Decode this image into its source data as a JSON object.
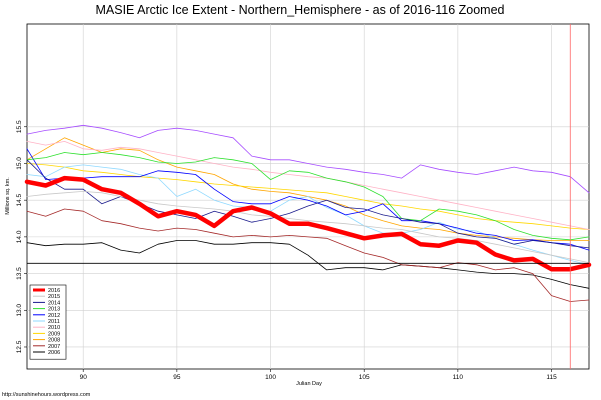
{
  "chart_data": {
    "type": "line",
    "title": "MASIE Arctic Ice Extent - Northern_Hemisphere - as of 2016-116 Zoomed",
    "xlabel": "Julian Day",
    "ylabel": "Millions sq. km.",
    "xlim": [
      87,
      117
    ],
    "ylim": [
      12.2,
      16.9
    ],
    "xticks": [
      90,
      95,
      100,
      105,
      110,
      115
    ],
    "yticks": [
      12.5,
      13.0,
      13.5,
      14.0,
      14.5,
      15.0,
      15.5
    ],
    "hline": 13.64,
    "vline": 116,
    "x": [
      87,
      88,
      89,
      90,
      91,
      92,
      93,
      94,
      95,
      96,
      97,
      98,
      99,
      100,
      101,
      102,
      103,
      104,
      105,
      106,
      107,
      108,
      109,
      110,
      111,
      112,
      113,
      114,
      115,
      116,
      117
    ],
    "legend_position": "bottom-left",
    "note": "http://sunshinehours.wordpress.com",
    "series": [
      {
        "name": "2016",
        "color": "#ff0000",
        "width": 4.5,
        "values": [
          14.75,
          14.7,
          14.8,
          14.78,
          14.65,
          14.6,
          14.45,
          14.28,
          14.35,
          14.3,
          14.15,
          14.35,
          14.4,
          14.32,
          14.18,
          14.18,
          14.12,
          14.05,
          13.98,
          14.02,
          14.04,
          13.9,
          13.88,
          13.95,
          13.92,
          13.76,
          13.68,
          13.7,
          13.56,
          13.56,
          13.62
        ]
      },
      {
        "name": "2015",
        "color": "#c9c9c9",
        "width": 0.8,
        "values": [
          14.55,
          14.58,
          14.6,
          14.62,
          14.6,
          14.55,
          14.5,
          14.45,
          14.42,
          14.4,
          14.38,
          14.35,
          14.3,
          14.28,
          14.25,
          14.22,
          14.2,
          14.18,
          14.15,
          14.12,
          14.1,
          14.05,
          14.0,
          13.98,
          13.95,
          13.9,
          13.85,
          13.8,
          13.75,
          13.7,
          13.65
        ]
      },
      {
        "name": "2014",
        "color": "#1a1a8c",
        "width": 0.8,
        "values": [
          15.05,
          14.8,
          14.65,
          14.65,
          14.45,
          14.55,
          14.45,
          14.35,
          14.3,
          14.25,
          14.35,
          14.28,
          14.2,
          14.25,
          14.32,
          14.42,
          14.5,
          14.4,
          14.38,
          14.3,
          14.25,
          14.2,
          14.18,
          14.05,
          14.0,
          13.98,
          13.9,
          13.95,
          13.92,
          13.88,
          13.85
        ]
      },
      {
        "name": "2013",
        "color": "#2ee02e",
        "width": 0.8,
        "values": [
          15.05,
          15.08,
          15.15,
          15.12,
          15.15,
          15.12,
          15.08,
          15.02,
          15.0,
          15.02,
          15.08,
          15.05,
          15.0,
          14.78,
          14.9,
          14.88,
          14.8,
          14.75,
          14.68,
          14.55,
          14.25,
          14.22,
          14.38,
          14.35,
          14.3,
          14.22,
          14.1,
          14.02,
          13.98,
          13.96,
          14.0
        ]
      },
      {
        "name": "2012",
        "color": "#0000ff",
        "width": 0.8,
        "values": [
          15.2,
          14.78,
          14.8,
          14.8,
          14.82,
          14.82,
          14.82,
          14.9,
          14.88,
          14.85,
          14.65,
          14.48,
          14.45,
          14.45,
          14.55,
          14.5,
          14.42,
          14.3,
          14.35,
          14.45,
          14.22,
          14.22,
          14.18,
          14.12,
          14.05,
          14.02,
          13.95,
          13.96,
          13.92,
          13.9,
          13.82
        ]
      },
      {
        "name": "2011",
        "color": "#8fd9ff",
        "width": 0.8,
        "values": [
          14.85,
          14.82,
          14.95,
          14.98,
          14.95,
          14.92,
          14.85,
          14.8,
          14.55,
          14.65,
          14.5,
          14.42,
          14.4,
          14.35,
          14.5,
          14.55,
          14.4,
          14.3,
          14.15,
          14.05,
          14.05,
          14.1,
          14.2,
          14.1,
          14.08,
          13.98,
          13.9,
          13.82,
          13.75,
          13.68,
          13.62
        ]
      },
      {
        "name": "2010",
        "color": "#ffb3c6",
        "width": 0.8,
        "values": [
          15.3,
          15.25,
          15.3,
          15.2,
          15.18,
          15.22,
          15.2,
          15.15,
          15.1,
          15.05,
          15.0,
          14.95,
          14.92,
          14.88,
          14.85,
          14.82,
          14.8,
          14.75,
          14.7,
          14.65,
          14.6,
          14.55,
          14.5,
          14.45,
          14.4,
          14.35,
          14.3,
          14.25,
          14.2,
          14.15,
          14.1
        ]
      },
      {
        "name": "2009",
        "color": "#ffd700",
        "width": 0.8,
        "values": [
          15.0,
          14.98,
          14.95,
          14.9,
          14.88,
          14.85,
          14.82,
          14.8,
          14.78,
          14.75,
          14.72,
          14.7,
          14.68,
          14.66,
          14.64,
          14.62,
          14.6,
          14.55,
          14.5,
          14.45,
          14.42,
          14.38,
          14.35,
          14.3,
          14.25,
          14.22,
          14.2,
          14.18,
          14.15,
          14.12,
          14.1
        ]
      },
      {
        "name": "2008",
        "color": "#ffa500",
        "width": 0.8,
        "values": [
          15.05,
          15.2,
          15.35,
          15.25,
          15.15,
          15.2,
          15.18,
          15.05,
          14.95,
          14.9,
          14.85,
          14.72,
          14.65,
          14.62,
          14.6,
          14.55,
          14.5,
          14.42,
          14.3,
          14.22,
          14.15,
          14.12,
          14.1,
          14.05,
          14.02,
          14.0,
          13.98,
          13.96,
          13.95,
          13.95,
          13.95
        ]
      },
      {
        "name": "2007",
        "color": "#a52a2a",
        "width": 0.8,
        "values": [
          14.35,
          14.28,
          14.38,
          14.35,
          14.22,
          14.18,
          14.12,
          14.08,
          14.12,
          14.1,
          14.05,
          14.0,
          14.02,
          14.0,
          14.02,
          14.0,
          13.98,
          13.88,
          13.78,
          13.72,
          13.62,
          13.6,
          13.58,
          13.65,
          13.62,
          13.55,
          13.58,
          13.5,
          13.2,
          13.12,
          13.14
        ]
      },
      {
        "name": "2006",
        "color": "#000000",
        "width": 0.8,
        "values": [
          13.92,
          13.88,
          13.9,
          13.9,
          13.92,
          13.82,
          13.78,
          13.9,
          13.95,
          13.95,
          13.9,
          13.9,
          13.92,
          13.92,
          13.9,
          13.75,
          13.55,
          13.58,
          13.58,
          13.55,
          13.62,
          13.6,
          13.58,
          13.55,
          13.52,
          13.5,
          13.5,
          13.48,
          13.42,
          13.35,
          13.3
        ]
      },
      {
        "name": "",
        "color": "#a64dff",
        "width": 0.8,
        "values": [
          15.4,
          15.45,
          15.48,
          15.52,
          15.48,
          15.42,
          15.35,
          15.45,
          15.48,
          15.45,
          15.4,
          15.35,
          15.1,
          15.05,
          15.05,
          15.0,
          14.95,
          14.92,
          14.88,
          14.85,
          14.8,
          14.98,
          14.92,
          14.88,
          14.85,
          14.9,
          14.95,
          14.9,
          14.88,
          14.82,
          14.6
        ]
      }
    ]
  }
}
